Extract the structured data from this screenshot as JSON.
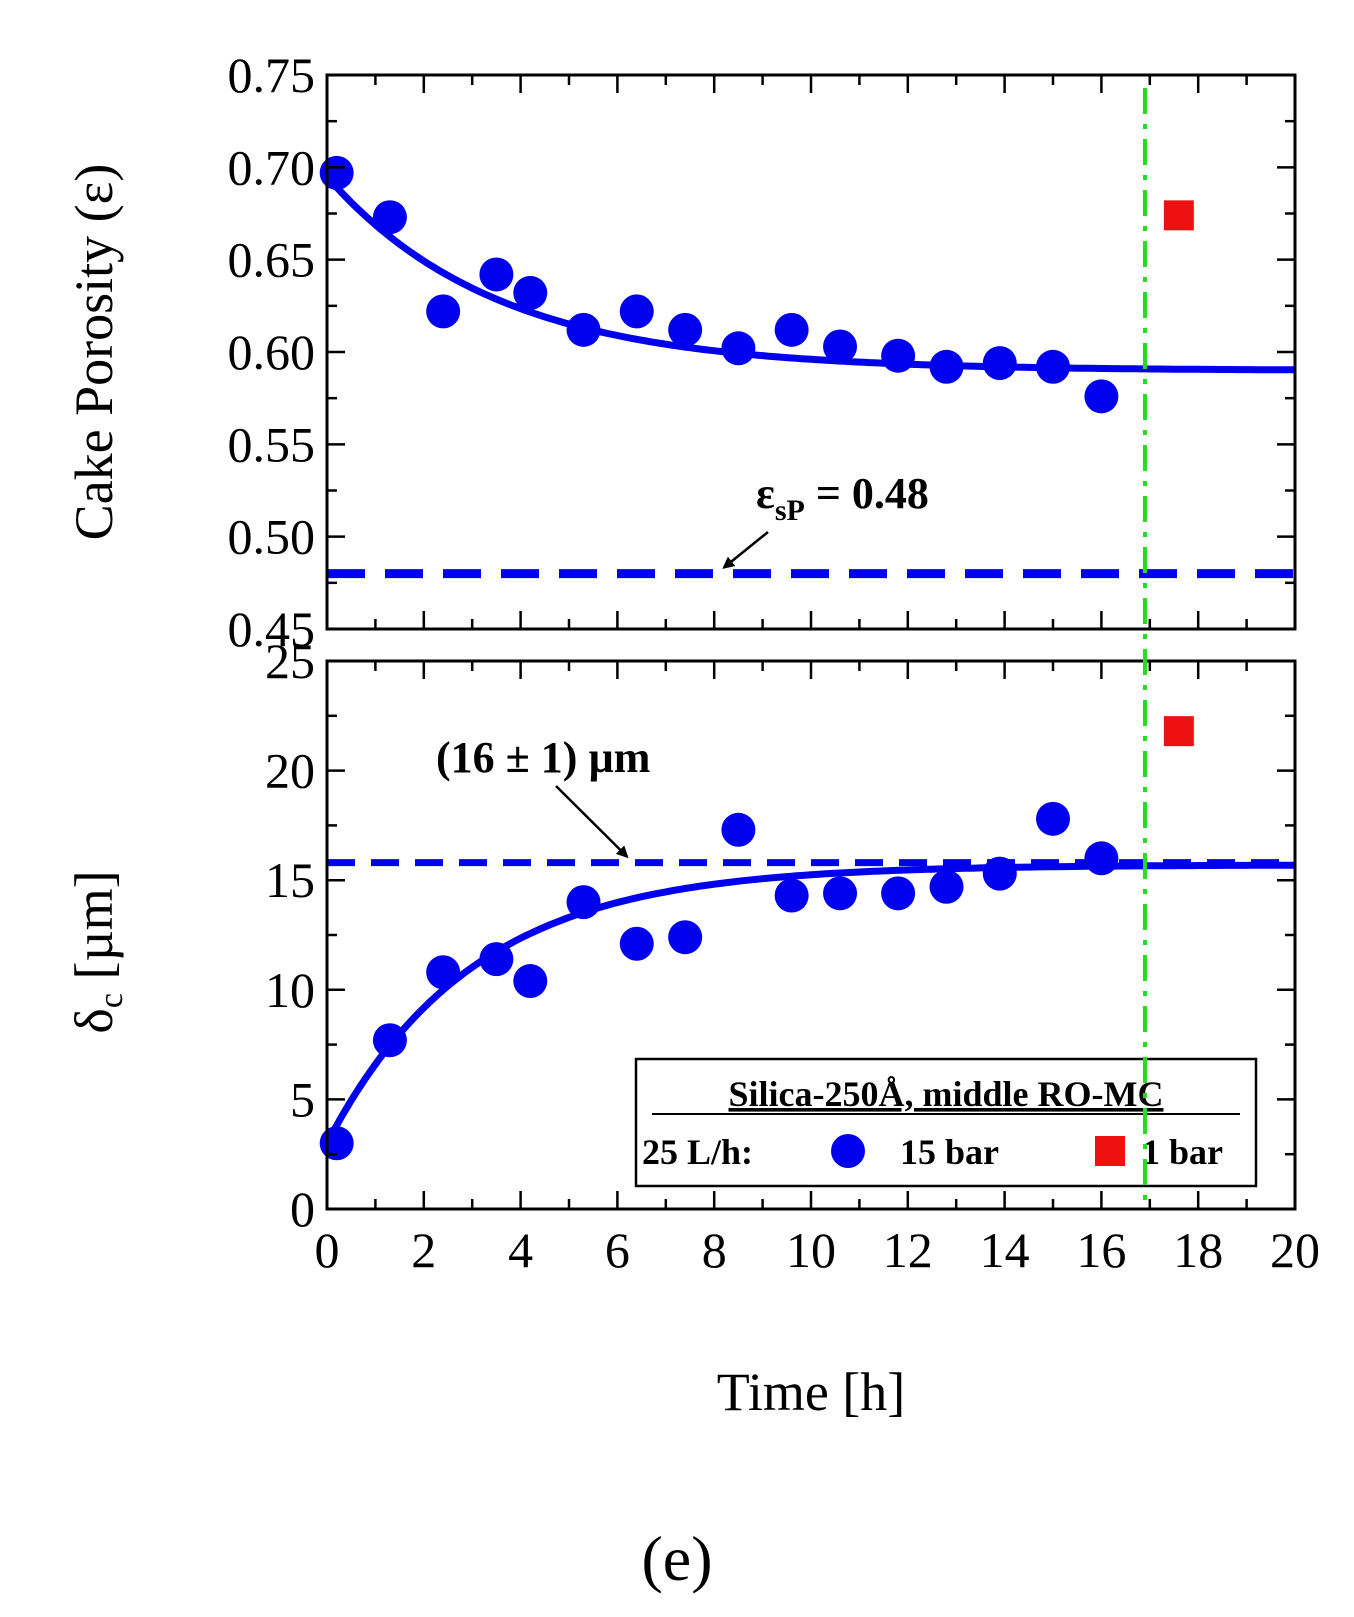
{
  "chart_data": [
    {
      "type": "scatter",
      "panel": "top",
      "ylabel": "Cake Porosity (ε)",
      "ylim": [
        0.45,
        0.75
      ],
      "yticks": [
        "0.45",
        "0.50",
        "0.55",
        "0.60",
        "0.65",
        "0.70",
        "0.75"
      ],
      "xlim": [
        0,
        20
      ],
      "series": [
        {
          "name": "15 bar",
          "color": "#0000ee",
          "marker": "circle",
          "x": [
            0.2,
            1.3,
            2.4,
            3.5,
            4.2,
            5.3,
            6.4,
            7.4,
            8.5,
            9.6,
            10.6,
            11.8,
            12.8,
            13.9,
            15.0,
            16.0
          ],
          "y": [
            0.697,
            0.673,
            0.622,
            0.642,
            0.632,
            0.612,
            0.622,
            0.612,
            0.602,
            0.612,
            0.603,
            0.598,
            0.592,
            0.594,
            0.592,
            0.576
          ]
        },
        {
          "name": "1 bar",
          "color": "#ee1111",
          "marker": "square",
          "x": [
            17.6
          ],
          "y": [
            0.674
          ]
        }
      ],
      "fit": {
        "type": "exponential",
        "y0": 0.695,
        "y_inf": 0.59,
        "tau": 3.5,
        "color": "#0000ee"
      },
      "reference_line": {
        "y": 0.48,
        "style": "dashed",
        "color": "#0000ee"
      },
      "annotation": {
        "text_main": "ε",
        "text_sub": "sP",
        "text_value": " = 0.48",
        "x": 8.2,
        "y": 0.48
      }
    },
    {
      "type": "scatter",
      "panel": "bottom",
      "ylabel_main": "δ",
      "ylabel_sub": "c",
      "ylabel_rest": " [µm]",
      "ylim": [
        0,
        25
      ],
      "yticks": [
        "0",
        "5",
        "10",
        "15",
        "20",
        "25"
      ],
      "xlim": [
        0,
        20
      ],
      "xlabel": "Time [h]",
      "xticks": [
        "0",
        "2",
        "4",
        "6",
        "8",
        "10",
        "12",
        "14",
        "16",
        "18",
        "20"
      ],
      "series": [
        {
          "name": "15 bar",
          "color": "#0000ee",
          "marker": "circle",
          "x": [
            0.2,
            1.3,
            2.4,
            3.5,
            4.2,
            5.3,
            6.4,
            7.4,
            8.5,
            9.6,
            10.6,
            11.8,
            12.8,
            13.9,
            15.0,
            16.0
          ],
          "y": [
            3.0,
            7.7,
            10.8,
            11.4,
            10.4,
            14.0,
            12.1,
            12.4,
            17.3,
            14.3,
            14.4,
            14.4,
            14.7,
            15.3,
            17.8,
            16.0
          ]
        },
        {
          "name": "1 bar",
          "color": "#ee1111",
          "marker": "square",
          "x": [
            17.6
          ],
          "y": [
            21.8
          ]
        }
      ],
      "fit": {
        "type": "exponential",
        "y0": 3.0,
        "y_inf": 15.7,
        "tau": 3.0,
        "color": "#0000ee"
      },
      "reference_line": {
        "y": 15.8,
        "style": "dashed",
        "color": "#0000ee"
      },
      "annotation": {
        "text": "(16 ± 1) µm",
        "x": 6.2,
        "y": 15.8
      }
    }
  ],
  "vertical_line": {
    "x": 16.9,
    "style": "dash-dot",
    "color": "#22dd22"
  },
  "legend": {
    "title": "Silica-250Å, middle RO-MC",
    "prefix": "25 L/h:",
    "items": [
      {
        "label": "15 bar",
        "marker": "circle",
        "color": "#0000ee"
      },
      {
        "label": "1 bar",
        "marker": "square",
        "color": "#ee1111"
      }
    ]
  },
  "panel_label": "(e)"
}
